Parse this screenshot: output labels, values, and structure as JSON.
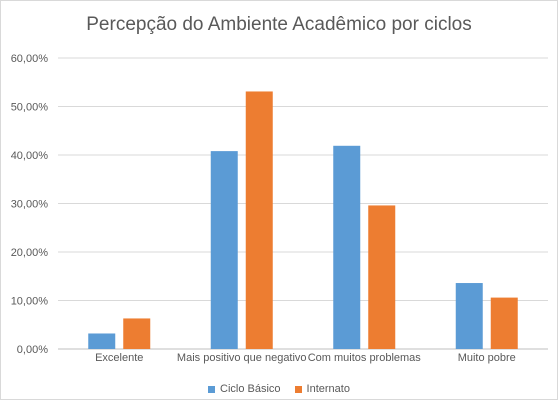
{
  "chart_data": {
    "type": "bar",
    "title": "Percepção do Ambiente Acadêmico por ciclos",
    "categories": [
      "Excelente",
      "Mais positivo que negativo",
      "Com muitos problemas",
      "Muito pobre"
    ],
    "series": [
      {
        "name": "Ciclo Básico",
        "color": "#5b9bd5",
        "values": [
          3.2,
          40.8,
          41.9,
          13.6
        ]
      },
      {
        "name": "Internato",
        "color": "#ed7d31",
        "values": [
          6.3,
          53.1,
          29.6,
          10.6
        ]
      }
    ],
    "ylim": [
      0,
      60
    ],
    "yticks": [
      "0,00%",
      "10,00%",
      "20,00%",
      "30,00%",
      "40,00%",
      "50,00%",
      "60,00%"
    ],
    "grid": true,
    "legend_position": "bottom"
  }
}
